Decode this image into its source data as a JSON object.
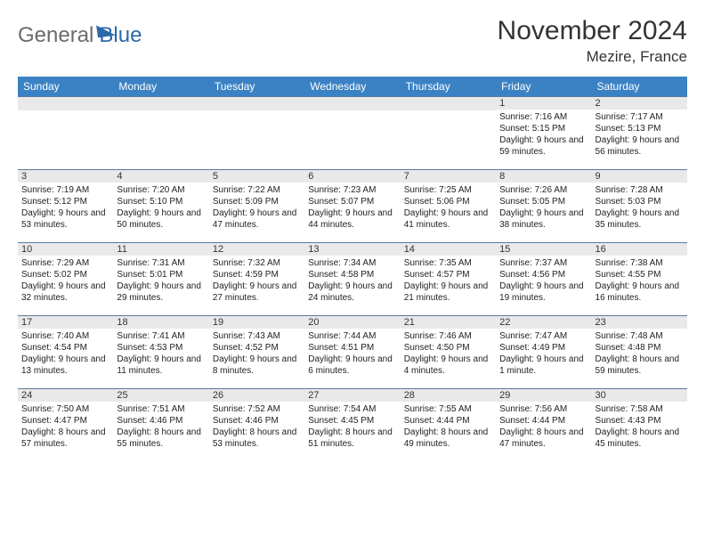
{
  "logo": {
    "part1": "General",
    "part2": "Blue"
  },
  "title": {
    "month": "November 2024",
    "location": "Mezire, France"
  },
  "colors": {
    "header_bar": "#3b82c4",
    "daynum_bg": "#e9e9e9",
    "cell_border": "#5a7aa0",
    "logo_gray": "#6b6b6b",
    "logo_blue": "#2a69a8"
  },
  "dayHeaders": [
    "Sunday",
    "Monday",
    "Tuesday",
    "Wednesday",
    "Thursday",
    "Friday",
    "Saturday"
  ],
  "weeks": [
    [
      null,
      null,
      null,
      null,
      null,
      {
        "n": "1",
        "sr": "7:16 AM",
        "ss": "5:15 PM",
        "dl": "9 hours and 59 minutes."
      },
      {
        "n": "2",
        "sr": "7:17 AM",
        "ss": "5:13 PM",
        "dl": "9 hours and 56 minutes."
      }
    ],
    [
      {
        "n": "3",
        "sr": "7:19 AM",
        "ss": "5:12 PM",
        "dl": "9 hours and 53 minutes."
      },
      {
        "n": "4",
        "sr": "7:20 AM",
        "ss": "5:10 PM",
        "dl": "9 hours and 50 minutes."
      },
      {
        "n": "5",
        "sr": "7:22 AM",
        "ss": "5:09 PM",
        "dl": "9 hours and 47 minutes."
      },
      {
        "n": "6",
        "sr": "7:23 AM",
        "ss": "5:07 PM",
        "dl": "9 hours and 44 minutes."
      },
      {
        "n": "7",
        "sr": "7:25 AM",
        "ss": "5:06 PM",
        "dl": "9 hours and 41 minutes."
      },
      {
        "n": "8",
        "sr": "7:26 AM",
        "ss": "5:05 PM",
        "dl": "9 hours and 38 minutes."
      },
      {
        "n": "9",
        "sr": "7:28 AM",
        "ss": "5:03 PM",
        "dl": "9 hours and 35 minutes."
      }
    ],
    [
      {
        "n": "10",
        "sr": "7:29 AM",
        "ss": "5:02 PM",
        "dl": "9 hours and 32 minutes."
      },
      {
        "n": "11",
        "sr": "7:31 AM",
        "ss": "5:01 PM",
        "dl": "9 hours and 29 minutes."
      },
      {
        "n": "12",
        "sr": "7:32 AM",
        "ss": "4:59 PM",
        "dl": "9 hours and 27 minutes."
      },
      {
        "n": "13",
        "sr": "7:34 AM",
        "ss": "4:58 PM",
        "dl": "9 hours and 24 minutes."
      },
      {
        "n": "14",
        "sr": "7:35 AM",
        "ss": "4:57 PM",
        "dl": "9 hours and 21 minutes."
      },
      {
        "n": "15",
        "sr": "7:37 AM",
        "ss": "4:56 PM",
        "dl": "9 hours and 19 minutes."
      },
      {
        "n": "16",
        "sr": "7:38 AM",
        "ss": "4:55 PM",
        "dl": "9 hours and 16 minutes."
      }
    ],
    [
      {
        "n": "17",
        "sr": "7:40 AM",
        "ss": "4:54 PM",
        "dl": "9 hours and 13 minutes."
      },
      {
        "n": "18",
        "sr": "7:41 AM",
        "ss": "4:53 PM",
        "dl": "9 hours and 11 minutes."
      },
      {
        "n": "19",
        "sr": "7:43 AM",
        "ss": "4:52 PM",
        "dl": "9 hours and 8 minutes."
      },
      {
        "n": "20",
        "sr": "7:44 AM",
        "ss": "4:51 PM",
        "dl": "9 hours and 6 minutes."
      },
      {
        "n": "21",
        "sr": "7:46 AM",
        "ss": "4:50 PM",
        "dl": "9 hours and 4 minutes."
      },
      {
        "n": "22",
        "sr": "7:47 AM",
        "ss": "4:49 PM",
        "dl": "9 hours and 1 minute."
      },
      {
        "n": "23",
        "sr": "7:48 AM",
        "ss": "4:48 PM",
        "dl": "8 hours and 59 minutes."
      }
    ],
    [
      {
        "n": "24",
        "sr": "7:50 AM",
        "ss": "4:47 PM",
        "dl": "8 hours and 57 minutes."
      },
      {
        "n": "25",
        "sr": "7:51 AM",
        "ss": "4:46 PM",
        "dl": "8 hours and 55 minutes."
      },
      {
        "n": "26",
        "sr": "7:52 AM",
        "ss": "4:46 PM",
        "dl": "8 hours and 53 minutes."
      },
      {
        "n": "27",
        "sr": "7:54 AM",
        "ss": "4:45 PM",
        "dl": "8 hours and 51 minutes."
      },
      {
        "n": "28",
        "sr": "7:55 AM",
        "ss": "4:44 PM",
        "dl": "8 hours and 49 minutes."
      },
      {
        "n": "29",
        "sr": "7:56 AM",
        "ss": "4:44 PM",
        "dl": "8 hours and 47 minutes."
      },
      {
        "n": "30",
        "sr": "7:58 AM",
        "ss": "4:43 PM",
        "dl": "8 hours and 45 minutes."
      }
    ]
  ],
  "labels": {
    "sunrise": "Sunrise: ",
    "sunset": "Sunset: ",
    "daylight": "Daylight: "
  }
}
